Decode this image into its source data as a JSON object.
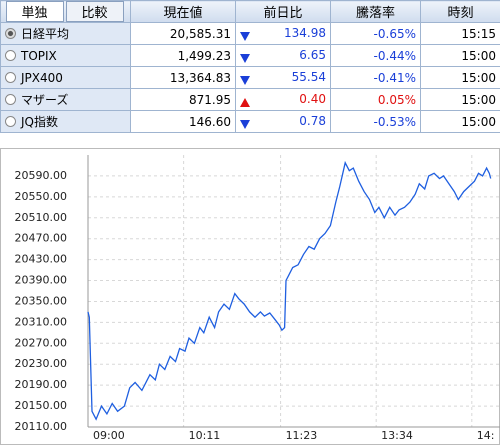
{
  "tabs": [
    "単独",
    "比較"
  ],
  "table": {
    "header": [
      "現在値",
      "前日比",
      "騰落率",
      "時刻"
    ],
    "selected": 0,
    "rows": [
      {
        "name": "日経平均",
        "price": "20,585.31",
        "direction": "down",
        "change": "134.98",
        "rate": "-0.65%",
        "time": "15:15"
      },
      {
        "name": "TOPIX",
        "price": "1,499.23",
        "direction": "down",
        "change": "6.65",
        "rate": "-0.44%",
        "time": "15:00"
      },
      {
        "name": "JPX400",
        "price": "13,364.83",
        "direction": "down",
        "change": "55.54",
        "rate": "-0.41%",
        "time": "15:00"
      },
      {
        "name": "マザーズ",
        "price": "871.95",
        "direction": "up",
        "change": "0.40",
        "rate": "0.05%",
        "time": "15:00"
      },
      {
        "name": "JQ指数",
        "price": "146.60",
        "direction": "down",
        "change": "0.78",
        "rate": "-0.53%",
        "time": "15:00"
      }
    ]
  },
  "chart_data": {
    "type": "line",
    "color": "#1f5fe0",
    "grid": true,
    "x": [
      0,
      1,
      3,
      6,
      10,
      14,
      18,
      22,
      27,
      31,
      35,
      40,
      46,
      50,
      53,
      57,
      61,
      65,
      68,
      72,
      75,
      79,
      83,
      86,
      90,
      94,
      97,
      101,
      105,
      109,
      112,
      116,
      120,
      124,
      128,
      131,
      135,
      139,
      142,
      144,
      146,
      147,
      149,
      152,
      156,
      160,
      164,
      168,
      172,
      176,
      180,
      184,
      187,
      191,
      194,
      197,
      201,
      205,
      209,
      213,
      216,
      220,
      224,
      228,
      231,
      235,
      239,
      243,
      246,
      250,
      253,
      257,
      261,
      264,
      268,
      272,
      275,
      279,
      283,
      287,
      290,
      293,
      296,
      298,
      299
    ],
    "values": [
      20330,
      20320,
      20140,
      20125,
      20150,
      20135,
      20155,
      20140,
      20150,
      20185,
      20195,
      20180,
      20210,
      20200,
      20230,
      20220,
      20245,
      20235,
      20260,
      20255,
      20280,
      20270,
      20300,
      20290,
      20320,
      20300,
      20330,
      20345,
      20335,
      20365,
      20355,
      20345,
      20330,
      20320,
      20330,
      20322,
      20328,
      20315,
      20305,
      20295,
      20300,
      20390,
      20400,
      20415,
      20420,
      20440,
      20455,
      20450,
      20470,
      20480,
      20495,
      20540,
      20570,
      20615,
      20600,
      20605,
      20580,
      20560,
      20545,
      20520,
      20530,
      20510,
      20530,
      20515,
      20525,
      20530,
      20540,
      20555,
      20575,
      20565,
      20590,
      20595,
      20585,
      20590,
      20575,
      20560,
      20545,
      20560,
      20570,
      20580,
      20595,
      20590,
      20605,
      20595,
      20585
    ],
    "xlim": [
      0,
      300
    ],
    "xticks": [
      {
        "value": 0,
        "label": "09:00"
      },
      {
        "value": 71,
        "label": "10:11"
      },
      {
        "value": 143,
        "label": "11:23"
      },
      {
        "value": 214,
        "label": "13:34"
      },
      {
        "value": 285,
        "label": "14:"
      }
    ],
    "ylim": [
      20110,
      20630
    ],
    "yticks": [
      {
        "value": 20110,
        "label": "20110.00"
      },
      {
        "value": 20150,
        "label": "20150.00"
      },
      {
        "value": 20190,
        "label": "20190.00"
      },
      {
        "value": 20230,
        "label": "20230.00"
      },
      {
        "value": 20270,
        "label": "20270.00"
      },
      {
        "value": 20310,
        "label": "20310.00"
      },
      {
        "value": 20350,
        "label": "20350.00"
      },
      {
        "value": 20390,
        "label": "20390.00"
      },
      {
        "value": 20430,
        "label": "20430.00"
      },
      {
        "value": 20470,
        "label": "20470.00"
      },
      {
        "value": 20510,
        "label": "20510.00"
      },
      {
        "value": 20550,
        "label": "20550.00"
      },
      {
        "value": 20590,
        "label": "20590.00"
      }
    ]
  }
}
